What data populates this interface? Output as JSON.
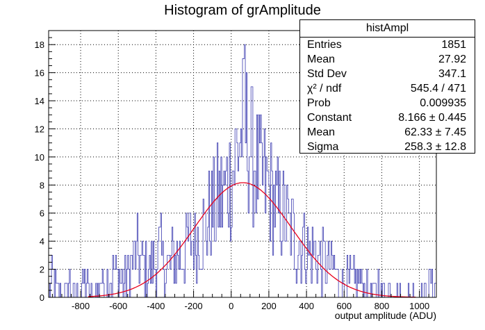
{
  "chart_data": {
    "type": "histogram",
    "title": "Histogram of grAmplitude",
    "xlabel": "output amplitude (ADU)",
    "ylabel": "",
    "xlim": [
      -970,
      1090
    ],
    "ylim": [
      0,
      19
    ],
    "x_ticks": [
      -800,
      -600,
      -400,
      -200,
      0,
      200,
      400,
      600,
      800,
      1000
    ],
    "y_ticks": [
      0,
      2,
      4,
      6,
      8,
      10,
      12,
      14,
      16,
      18
    ],
    "grid": true,
    "bin_width": 5,
    "bins_start": -970,
    "histogram_envelope": [
      [
        -970,
        1
      ],
      [
        -940,
        1
      ],
      [
        -900,
        0
      ],
      [
        -860,
        1
      ],
      [
        -820,
        0
      ],
      [
        -780,
        1
      ],
      [
        -740,
        0
      ],
      [
        -700,
        1
      ],
      [
        -660,
        1
      ],
      [
        -620,
        2
      ],
      [
        -580,
        1
      ],
      [
        -540,
        2
      ],
      [
        -500,
        3
      ],
      [
        -460,
        2
      ],
      [
        -420,
        2
      ],
      [
        -380,
        3
      ],
      [
        -340,
        2
      ],
      [
        -300,
        3
      ],
      [
        -260,
        3
      ],
      [
        -220,
        4
      ],
      [
        -180,
        4
      ],
      [
        -140,
        5
      ],
      [
        -100,
        6
      ],
      [
        -60,
        7
      ],
      [
        -20,
        8
      ],
      [
        20,
        10
      ],
      [
        60,
        12
      ],
      [
        100,
        11
      ],
      [
        140,
        9
      ],
      [
        180,
        8
      ],
      [
        220,
        7
      ],
      [
        260,
        6
      ],
      [
        300,
        5
      ],
      [
        340,
        4
      ],
      [
        380,
        4
      ],
      [
        420,
        3
      ],
      [
        460,
        3
      ],
      [
        500,
        2
      ],
      [
        540,
        2
      ],
      [
        580,
        1
      ],
      [
        620,
        1
      ],
      [
        660,
        1
      ],
      [
        700,
        1
      ],
      [
        740,
        0
      ],
      [
        780,
        1
      ],
      [
        820,
        0
      ],
      [
        860,
        1
      ],
      [
        900,
        0
      ],
      [
        940,
        0
      ],
      [
        980,
        0
      ],
      [
        1020,
        0
      ],
      [
        1060,
        1
      ]
    ],
    "fit": {
      "function": "gaus",
      "constant": 8.166,
      "mean": 62.33,
      "sigma": 258.3,
      "color": "#e8001c"
    },
    "histogram_color": "#3b3bb0",
    "stats": {
      "name": "histAmpl",
      "rows": [
        {
          "key": "Entries",
          "value": "1851"
        },
        {
          "key": "Mean",
          "value": "27.92"
        },
        {
          "key": "Std Dev",
          "value": "347.1"
        },
        {
          "key": "χ² / ndf",
          "value": "545.4 / 471"
        },
        {
          "key": "Prob",
          "value": "0.009935"
        },
        {
          "key": "Constant",
          "value": "8.166 ± 0.445"
        },
        {
          "key": "Mean",
          "value": "62.33 ± 7.45"
        },
        {
          "key": "Sigma",
          "value": "258.3 ± 12.8"
        }
      ]
    }
  }
}
